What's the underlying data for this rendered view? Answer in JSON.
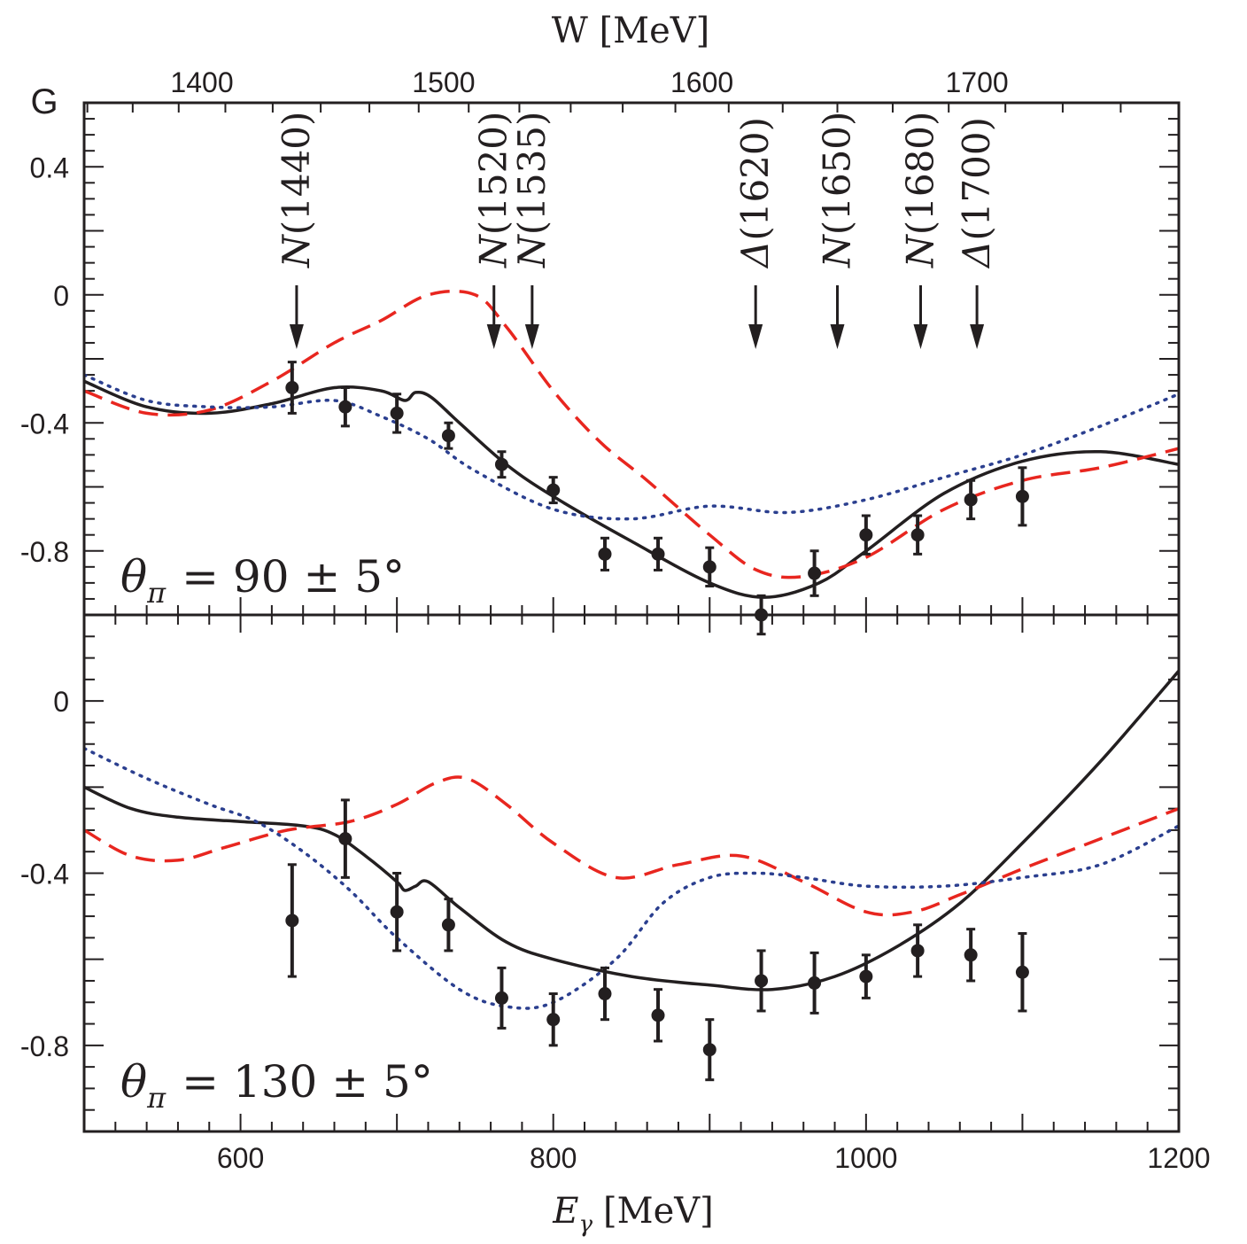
{
  "chart_data": {
    "type": "line",
    "panel_label": "G",
    "top_axis": {
      "label": "W [MeV]",
      "ticks": [
        1400,
        1500,
        1600,
        1700
      ],
      "tick_labels": [
        "1400",
        "1500",
        "1600",
        "1700"
      ]
    },
    "x_axis": {
      "label_main": "E",
      "label_sub": "γ",
      "label_unit": "[MeV]",
      "range": [
        500,
        1200
      ],
      "ticks": [
        600,
        800,
        1000,
        1200
      ],
      "tick_labels": [
        "600",
        "800",
        "1000",
        "1200"
      ]
    },
    "resonances": [
      {
        "name": "N",
        "mass": "(1440)",
        "W": 1440
      },
      {
        "name": "N",
        "mass": "(1520)",
        "W": 1520
      },
      {
        "name": "N",
        "mass": "(1535)",
        "W": 1535
      },
      {
        "name": "Δ",
        "mass": "(1620)",
        "W": 1620
      },
      {
        "name": "N",
        "mass": "(1650)",
        "W": 1650
      },
      {
        "name": "N",
        "mass": "(1680)",
        "W": 1680
      },
      {
        "name": "Δ",
        "mass": "(1700)",
        "W": 1700
      }
    ],
    "series_styles": {
      "solid": {
        "color": "#231f20"
      },
      "dashed": {
        "color": "#e8261f"
      },
      "dotted": {
        "color": "#2b3f8f"
      },
      "data": {
        "color": "#231f20"
      }
    },
    "panels": [
      {
        "label_lhs": "θ",
        "label_sub": "π",
        "label_rhs": "= 90 ± 5°",
        "ylim": [
          -1.0,
          0.6
        ],
        "yticks": [
          0.4,
          0,
          -0.4,
          -0.8
        ],
        "ytick_labels": [
          "0.4",
          "0",
          "-0.4",
          "-0.8"
        ],
        "data": [
          {
            "x": 633,
            "y": -0.29,
            "err": 0.08
          },
          {
            "x": 667,
            "y": -0.35,
            "err": 0.06
          },
          {
            "x": 700,
            "y": -0.37,
            "err": 0.06
          },
          {
            "x": 733,
            "y": -0.44,
            "err": 0.04
          },
          {
            "x": 767,
            "y": -0.53,
            "err": 0.04
          },
          {
            "x": 800,
            "y": -0.61,
            "err": 0.04
          },
          {
            "x": 833,
            "y": -0.81,
            "err": 0.05
          },
          {
            "x": 867,
            "y": -0.81,
            "err": 0.05
          },
          {
            "x": 900,
            "y": -0.85,
            "err": 0.06
          },
          {
            "x": 933,
            "y": -1.0,
            "err": 0.06
          },
          {
            "x": 967,
            "y": -0.87,
            "err": 0.07
          },
          {
            "x": 1000,
            "y": -0.75,
            "err": 0.06
          },
          {
            "x": 1033,
            "y": -0.75,
            "err": 0.06
          },
          {
            "x": 1067,
            "y": -0.64,
            "err": 0.06
          },
          {
            "x": 1100,
            "y": -0.63,
            "err": 0.09
          }
        ],
        "series": [
          {
            "name": "solid",
            "style": "solid",
            "x": [
              500,
              540,
              580,
              620,
              660,
              690,
              705,
              712,
              722,
              740,
              770,
              800,
              850,
              900,
              935,
              970,
              1000,
              1050,
              1100,
              1150,
              1200
            ],
            "y": [
              -0.27,
              -0.35,
              -0.37,
              -0.34,
              -0.29,
              -0.3,
              -0.33,
              -0.305,
              -0.32,
              -0.4,
              -0.53,
              -0.63,
              -0.77,
              -0.9,
              -0.945,
              -0.9,
              -0.8,
              -0.62,
              -0.52,
              -0.49,
              -0.53
            ]
          },
          {
            "name": "dashed",
            "style": "dashed",
            "x": [
              500,
              540,
              580,
              620,
              660,
              690,
              720,
              750,
              770,
              800,
              830,
              860,
              900,
              930,
              960,
              1000,
              1050,
              1100,
              1150,
              1200
            ],
            "y": [
              -0.3,
              -0.37,
              -0.36,
              -0.27,
              -0.15,
              -0.08,
              0.0,
              0.0,
              -0.1,
              -0.3,
              -0.46,
              -0.58,
              -0.75,
              -0.86,
              -0.88,
              -0.82,
              -0.67,
              -0.58,
              -0.54,
              -0.48
            ]
          },
          {
            "name": "dotted",
            "style": "dotted",
            "x": [
              500,
              540,
              580,
              620,
              660,
              690,
              720,
              750,
              800,
              850,
              900,
              950,
              1000,
              1050,
              1100,
              1150,
              1200
            ],
            "y": [
              -0.25,
              -0.33,
              -0.35,
              -0.35,
              -0.33,
              -0.38,
              -0.45,
              -0.55,
              -0.67,
              -0.7,
              -0.66,
              -0.68,
              -0.64,
              -0.57,
              -0.5,
              -0.41,
              -0.31
            ]
          }
        ]
      },
      {
        "label_lhs": "θ",
        "label_sub": "π",
        "label_rhs": "= 130 ± 5°",
        "ylim": [
          -1.0,
          0.2
        ],
        "yticks": [
          0,
          -0.4,
          -0.8
        ],
        "ytick_labels": [
          "0",
          "-0.4",
          "-0.8"
        ],
        "data": [
          {
            "x": 633,
            "y": -0.51,
            "err": 0.13
          },
          {
            "x": 667,
            "y": -0.32,
            "err": 0.09
          },
          {
            "x": 700,
            "y": -0.49,
            "err": 0.09
          },
          {
            "x": 733,
            "y": -0.52,
            "err": 0.06
          },
          {
            "x": 767,
            "y": -0.69,
            "err": 0.07
          },
          {
            "x": 800,
            "y": -0.74,
            "err": 0.06
          },
          {
            "x": 833,
            "y": -0.68,
            "err": 0.06
          },
          {
            "x": 867,
            "y": -0.73,
            "err": 0.06
          },
          {
            "x": 900,
            "y": -0.81,
            "err": 0.07
          },
          {
            "x": 933,
            "y": -0.65,
            "err": 0.07
          },
          {
            "x": 967,
            "y": -0.655,
            "err": 0.07
          },
          {
            "x": 1000,
            "y": -0.64,
            "err": 0.05
          },
          {
            "x": 1033,
            "y": -0.58,
            "err": 0.06
          },
          {
            "x": 1067,
            "y": -0.59,
            "err": 0.06
          },
          {
            "x": 1100,
            "y": -0.63,
            "err": 0.09
          }
        ],
        "series": [
          {
            "name": "solid",
            "style": "solid",
            "x": [
              500,
              530,
              560,
              600,
              640,
              660,
              680,
              700,
              705,
              712,
              720,
              740,
              770,
              800,
              850,
              900,
              940,
              980,
              1020,
              1060,
              1100,
              1150,
              1200
            ],
            "y": [
              -0.2,
              -0.25,
              -0.27,
              -0.28,
              -0.29,
              -0.31,
              -0.36,
              -0.42,
              -0.44,
              -0.43,
              -0.42,
              -0.48,
              -0.56,
              -0.6,
              -0.64,
              -0.66,
              -0.67,
              -0.64,
              -0.57,
              -0.47,
              -0.33,
              -0.14,
              0.07
            ]
          },
          {
            "name": "dashed",
            "style": "dashed",
            "x": [
              500,
              530,
              560,
              590,
              630,
              670,
              700,
              725,
              745,
              770,
              800,
              840,
              880,
              920,
              960,
              1000,
              1030,
              1060,
              1100,
              1150,
              1200
            ],
            "y": [
              -0.3,
              -0.36,
              -0.37,
              -0.34,
              -0.3,
              -0.28,
              -0.24,
              -0.19,
              -0.18,
              -0.24,
              -0.33,
              -0.41,
              -0.38,
              -0.36,
              -0.42,
              -0.49,
              -0.49,
              -0.45,
              -0.39,
              -0.32,
              -0.25
            ]
          },
          {
            "name": "dotted",
            "style": "dotted",
            "x": [
              500,
              540,
              580,
              610,
              640,
              670,
              700,
              740,
              770,
              800,
              840,
              870,
              900,
              930,
              960,
              1000,
              1050,
              1100,
              1150,
              1200
            ],
            "y": [
              -0.11,
              -0.18,
              -0.24,
              -0.28,
              -0.35,
              -0.44,
              -0.55,
              -0.67,
              -0.71,
              -0.7,
              -0.6,
              -0.47,
              -0.41,
              -0.4,
              -0.41,
              -0.43,
              -0.43,
              -0.41,
              -0.38,
              -0.29
            ]
          }
        ]
      }
    ]
  }
}
